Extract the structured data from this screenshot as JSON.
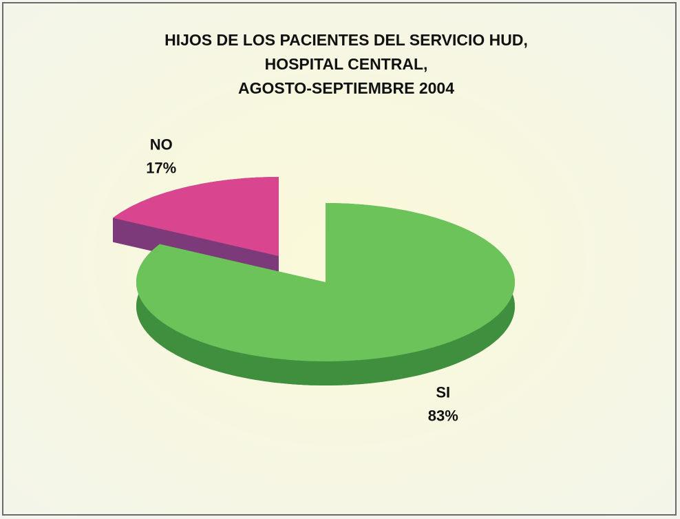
{
  "chart_data": {
    "type": "pie",
    "title": [
      "HIJOS DE LOS PACIENTES DEL SERVICIO HUD,",
      "HOSPITAL CENTRAL,",
      "AGOSTO-SEPTIEMBRE 2004"
    ],
    "categories": [
      "NO",
      "SI"
    ],
    "values": [
      17,
      83
    ],
    "value_labels": [
      "17%",
      "83%"
    ],
    "colors": [
      "#d9468f",
      "#6cc35a"
    ],
    "side_colors": [
      "#7d3a7a",
      "#3f8f3f"
    ],
    "exploded": [
      "NO"
    ]
  }
}
